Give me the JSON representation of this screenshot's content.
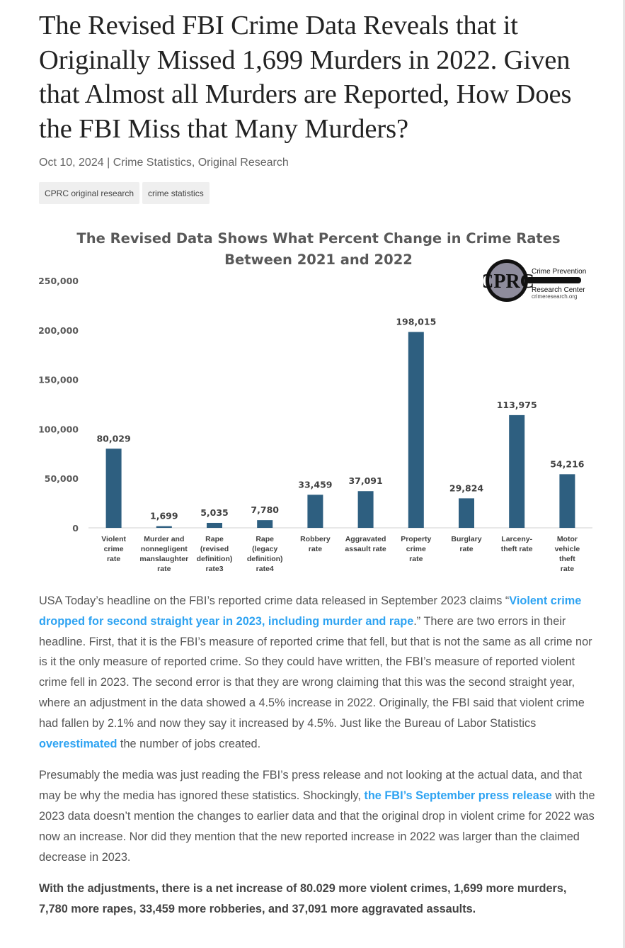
{
  "article": {
    "title": "The Revised FBI Crime Data Reveals that it Originally Missed 1,699 Murders in 2022. Given that Almost all Murders are Reported, How Does the FBI Miss that Many Murders?",
    "date": "Oct 10, 2024",
    "separator": "|",
    "categories": [
      "Crime Statistics",
      "Original Research"
    ],
    "tags": [
      "CPRC original research",
      "crime statistics"
    ]
  },
  "logo": {
    "initials": "CPRC",
    "line1": "Crime Prevention",
    "line2": "Research Center",
    "url": "crimeresearch.org"
  },
  "chart_data": {
    "type": "bar",
    "title_line1": "The Revised Data Shows What Percent Change in Crime Rates",
    "title_line2": "Between 2021 and 2022",
    "categories": [
      [
        "Violent",
        "crime",
        "rate"
      ],
      [
        "Murder and",
        "nonnegligent",
        "manslaughter",
        "rate"
      ],
      [
        "Rape",
        "(revised",
        "definition)",
        "rate3"
      ],
      [
        "Rape",
        "(legacy",
        "definition)",
        "rate4"
      ],
      [
        "Robbery",
        "rate"
      ],
      [
        "Aggravated",
        "assault rate"
      ],
      [
        "Property",
        "crime",
        "rate"
      ],
      [
        "Burglary",
        "rate"
      ],
      [
        "Larceny-",
        "theft rate"
      ],
      [
        "Motor",
        "vehicle",
        "theft",
        "rate"
      ]
    ],
    "values": [
      80029,
      1699,
      5035,
      7780,
      33459,
      37091,
      198015,
      29824,
      113975,
      54216
    ],
    "value_labels": [
      "80,029",
      "1,699",
      "5,035",
      "7,780",
      "33,459",
      "37,091",
      "198,015",
      "29,824",
      "113,975",
      "54,216"
    ],
    "yticks": [
      0,
      50000,
      100000,
      150000,
      200000,
      250000
    ],
    "ytick_labels": [
      "0",
      "50,000",
      "100,000",
      "150,000",
      "200,000",
      "250,000"
    ],
    "ylim": [
      0,
      250000
    ],
    "bar_color": "#2e5f80",
    "grid": false
  },
  "body": {
    "p1_a": "USA Today’s headline on the FBI’s reported crime data released in September 2023 claims “",
    "p1_link1": "Violent crime dropped for second straight year in 2023, including murder and rape",
    "p1_b": ".” There are two errors in their headline. First, that it is the FBI’s measure of reported crime that fell, but that is not the same as all crime nor is it the only measure of reported crime. So they could have written, the FBI’s measure of reported violent crime fell in 2023. The second error is that they are wrong claiming that this was the second straight year, where an adjustment in the data showed a 4.5% increase in 2022. Originally, the FBI said that violent crime had fallen by 2.1% and now they say it increased by 4.5%. Just like the Bureau of Labor Statistics ",
    "p1_link2": "overestimated",
    "p1_c": " the number of jobs created.",
    "p2_a": "Presumably the media was just reading the FBI’s press release and not looking at the actual data, and that may be why the media has ignored these statistics. Shockingly, ",
    "p2_link": "the FBI’s September press release",
    "p2_b": " with the 2023 data doesn’t mention the changes to earlier data and that the original drop in violent crime for 2022 was now an increase. Nor did they mention that the new reported increase in 2022 was larger than the claimed decrease in 2023.",
    "p3": "With the adjustments, there is a net increase of 80.029 more violent crimes, 1,699 more murders, 7,780 more rapes, 33,459 more robberies, and 37,091 more aggravated assaults."
  },
  "colors": {
    "link": "#2ea3f2",
    "tag_bg": "#efefef"
  }
}
